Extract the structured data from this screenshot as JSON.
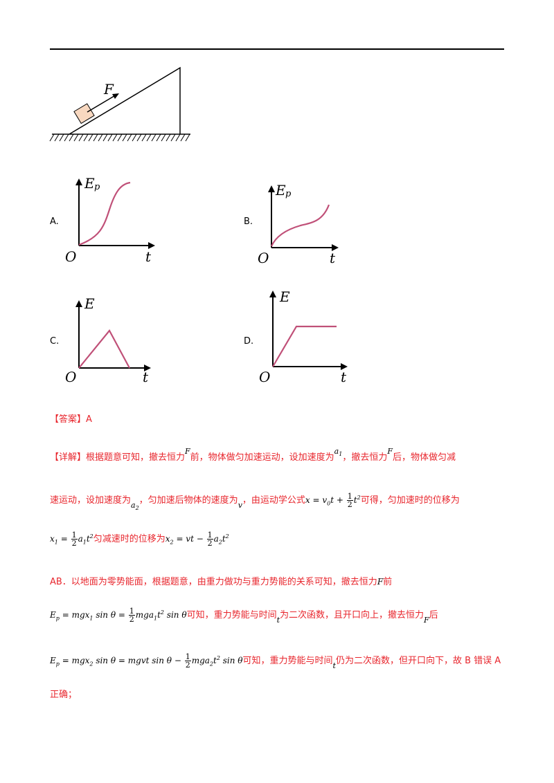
{
  "diagram": {
    "force_label": "F"
  },
  "options": [
    {
      "letter": "A.",
      "ylabel": "E",
      "ysub": "p",
      "origin": "O",
      "xlabel": "t",
      "curve_color": "#c05078"
    },
    {
      "letter": "B.",
      "ylabel": "E",
      "ysub": "p",
      "origin": "O",
      "xlabel": "t",
      "curve_color": "#c05078"
    },
    {
      "letter": "C.",
      "ylabel": "E",
      "ysub": "",
      "origin": "O",
      "xlabel": "t",
      "curve_color": "#c05078"
    },
    {
      "letter": "D.",
      "ylabel": "E",
      "ysub": "",
      "origin": "O",
      "xlabel": "t",
      "curve_color": "#c05078"
    }
  ],
  "answer": {
    "label": "【答案】",
    "value": "A"
  },
  "explanation": {
    "l1_a": "【详解】根据题意可知，撤去恒力",
    "l1_b": "前，物体做匀加速运动，设加速度为",
    "l1_c": "，撤去恒力",
    "l1_d": "后，物体做匀减",
    "l2_a": "速运动，设加速度为",
    "l2_b": "，匀加速后物体的速度为",
    "l2_c": "，由运动学公式",
    "l2_d": "可得，匀加速时的位移为",
    "l3_a": "匀减速时的位移为",
    "l4": "AB．以地面为零势能面，根据题意，由重力做功与重力势能的关系可知，撤去恒力",
    "l4_b": "前",
    "l5_a": "可知，重力势能与时间",
    "l5_b": "为二次函数，且开口向上，撤去恒力",
    "l5_c": "后",
    "l6_a": "可知，重力势能与时间",
    "l6_b": "仍为二次函数，但开口向下，故 B 错误 A",
    "l7": "正确；"
  },
  "accent_color": "#e8262d"
}
